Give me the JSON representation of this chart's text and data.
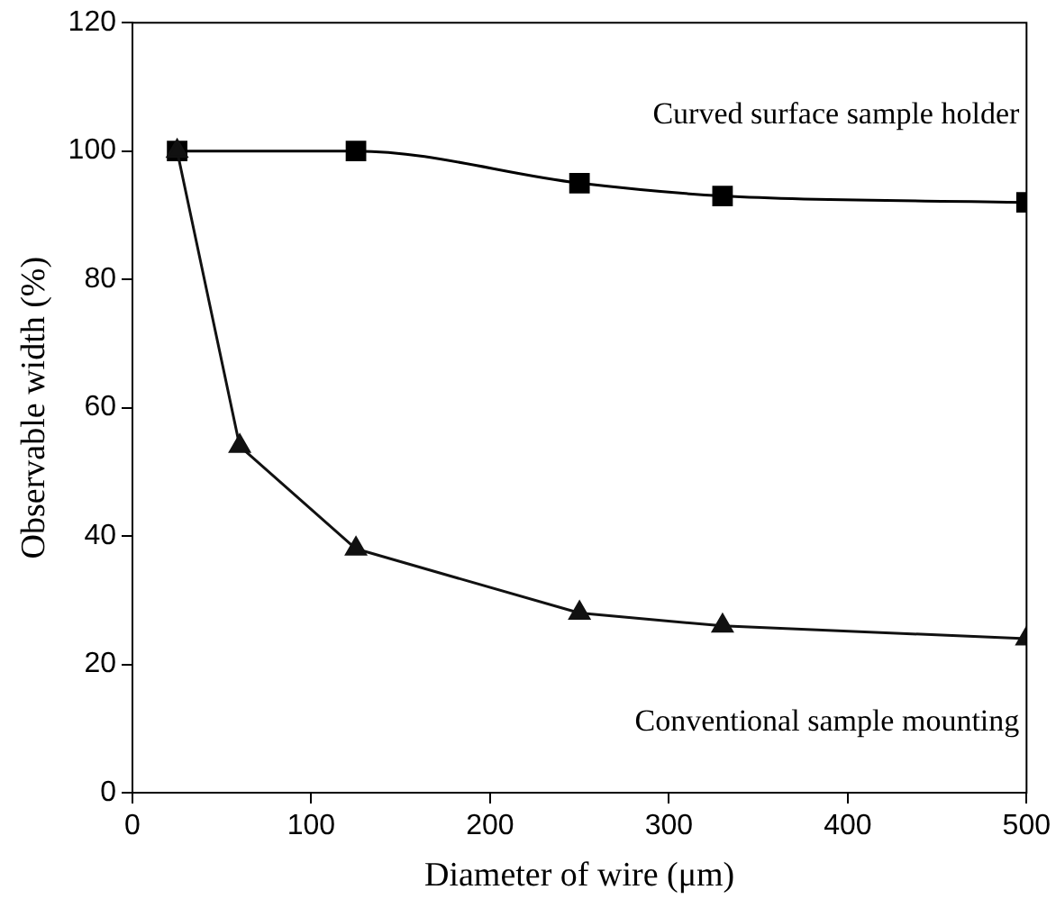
{
  "chart_data": {
    "type": "line",
    "xlabel": "Diameter of wire (μm)",
    "ylabel": "Observable width (%)",
    "xlim": [
      0,
      500
    ],
    "xticks": [
      0,
      100,
      200,
      300,
      400,
      500
    ],
    "ylim": [
      0,
      120
    ],
    "yticks": [
      0,
      20,
      40,
      60,
      80,
      100,
      120
    ],
    "grid": false,
    "legend": false,
    "series": [
      {
        "name": "Curved surface sample holder",
        "color": "#000000",
        "marker": "square",
        "x": [
          25,
          125,
          250,
          330,
          500
        ],
        "values": [
          100,
          100,
          95,
          93,
          92
        ]
      },
      {
        "name": "Conventional sample mounting",
        "color": "#111111",
        "marker": "triangle",
        "x": [
          25,
          60,
          125,
          250,
          330,
          500
        ],
        "values": [
          100,
          54,
          38,
          28,
          26,
          24
        ]
      }
    ]
  }
}
